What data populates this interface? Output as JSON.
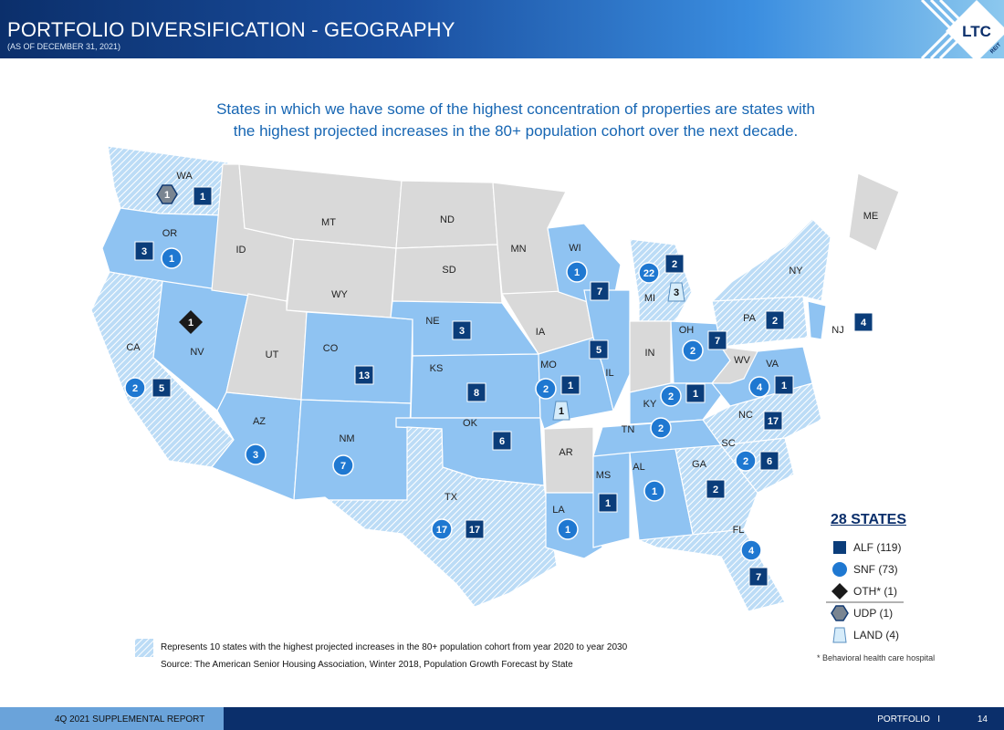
{
  "header": {
    "title": "PORTFOLIO DIVERSIFICATION - GEOGRAPHY",
    "subtitle": "(AS OF DECEMBER 31, 2021)",
    "logo_text": "LTC",
    "logo_subtext": "REIT"
  },
  "headline": "States in which we have some of the highest concentration of properties are states with the highest projected increases in the 80+ population cohort over the next decade.",
  "colors": {
    "alf": "#0b3d7a",
    "snf": "#1f78d1",
    "oth": "#1a1a1a",
    "udp": "#7a8591",
    "land": "#d6ecfa",
    "presence_state": "#8fc3f2",
    "other_state": "#d9d9d9"
  },
  "states": [
    {
      "abbr": "WA",
      "counts": [
        {
          "type": "UDP",
          "value": "1"
        },
        {
          "type": "ALF",
          "value": "1"
        }
      ],
      "hatched": true
    },
    {
      "abbr": "OR",
      "counts": [
        {
          "type": "ALF",
          "value": "3"
        },
        {
          "type": "SNF",
          "value": "1"
        }
      ],
      "hatched": false
    },
    {
      "abbr": "CA",
      "counts": [
        {
          "type": "SNF",
          "value": "2"
        },
        {
          "type": "ALF",
          "value": "5"
        }
      ],
      "hatched": true
    },
    {
      "abbr": "NV",
      "counts": [
        {
          "type": "OTH",
          "value": "1"
        }
      ],
      "hatched": false
    },
    {
      "abbr": "ID",
      "counts": [],
      "hatched": false
    },
    {
      "abbr": "MT",
      "counts": [],
      "hatched": false
    },
    {
      "abbr": "WY",
      "counts": [],
      "hatched": false
    },
    {
      "abbr": "UT",
      "counts": [],
      "hatched": false
    },
    {
      "abbr": "AZ",
      "counts": [
        {
          "type": "SNF",
          "value": "3"
        }
      ],
      "hatched": false
    },
    {
      "abbr": "CO",
      "counts": [
        {
          "type": "ALF",
          "value": "13"
        }
      ],
      "hatched": false
    },
    {
      "abbr": "NM",
      "counts": [
        {
          "type": "SNF",
          "value": "7"
        }
      ],
      "hatched": false
    },
    {
      "abbr": "ND",
      "counts": [],
      "hatched": false
    },
    {
      "abbr": "SD",
      "counts": [],
      "hatched": false
    },
    {
      "abbr": "NE",
      "counts": [
        {
          "type": "ALF",
          "value": "3"
        }
      ],
      "hatched": false
    },
    {
      "abbr": "KS",
      "counts": [
        {
          "type": "ALF",
          "value": "8"
        }
      ],
      "hatched": false
    },
    {
      "abbr": "OK",
      "counts": [
        {
          "type": "ALF",
          "value": "6"
        }
      ],
      "hatched": false
    },
    {
      "abbr": "TX",
      "counts": [
        {
          "type": "SNF",
          "value": "17"
        },
        {
          "type": "ALF",
          "value": "17"
        }
      ],
      "hatched": true
    },
    {
      "abbr": "MN",
      "counts": [],
      "hatched": false
    },
    {
      "abbr": "IA",
      "counts": [],
      "hatched": false
    },
    {
      "abbr": "MO",
      "counts": [
        {
          "type": "SNF",
          "value": "2"
        },
        {
          "type": "ALF",
          "value": "1"
        },
        {
          "type": "LAND",
          "value": "1"
        }
      ],
      "hatched": false
    },
    {
      "abbr": "AR",
      "counts": [],
      "hatched": false
    },
    {
      "abbr": "LA",
      "counts": [
        {
          "type": "SNF",
          "value": "1"
        }
      ],
      "hatched": false
    },
    {
      "abbr": "WI",
      "counts": [
        {
          "type": "SNF",
          "value": "1"
        },
        {
          "type": "ALF",
          "value": "7"
        }
      ],
      "hatched": false
    },
    {
      "abbr": "IL",
      "counts": [
        {
          "type": "ALF",
          "value": "5"
        }
      ],
      "hatched": false
    },
    {
      "abbr": "MI",
      "counts": [
        {
          "type": "SNF",
          "value": "22"
        },
        {
          "type": "ALF",
          "value": "2"
        },
        {
          "type": "LAND",
          "value": "3"
        }
      ],
      "hatched": true
    },
    {
      "abbr": "IN",
      "counts": [],
      "hatched": false
    },
    {
      "abbr": "OH",
      "counts": [
        {
          "type": "SNF",
          "value": "2"
        },
        {
          "type": "ALF",
          "value": "7"
        }
      ],
      "hatched": false
    },
    {
      "abbr": "KY",
      "counts": [
        {
          "type": "SNF",
          "value": "2"
        },
        {
          "type": "ALF",
          "value": "1"
        }
      ],
      "hatched": false
    },
    {
      "abbr": "TN",
      "counts": [
        {
          "type": "SNF",
          "value": "2"
        }
      ],
      "hatched": false
    },
    {
      "abbr": "MS",
      "counts": [
        {
          "type": "ALF",
          "value": "1"
        }
      ],
      "hatched": false
    },
    {
      "abbr": "AL",
      "counts": [
        {
          "type": "SNF",
          "value": "1"
        }
      ],
      "hatched": false
    },
    {
      "abbr": "GA",
      "counts": [
        {
          "type": "ALF",
          "value": "2"
        }
      ],
      "hatched": true
    },
    {
      "abbr": "FL",
      "counts": [
        {
          "type": "SNF",
          "value": "4"
        },
        {
          "type": "ALF",
          "value": "7"
        }
      ],
      "hatched": true
    },
    {
      "abbr": "SC",
      "counts": [
        {
          "type": "SNF",
          "value": "2"
        },
        {
          "type": "ALF",
          "value": "6"
        }
      ],
      "hatched": true
    },
    {
      "abbr": "NC",
      "counts": [
        {
          "type": "ALF",
          "value": "17"
        }
      ],
      "hatched": true
    },
    {
      "abbr": "VA",
      "counts": [
        {
          "type": "SNF",
          "value": "4"
        },
        {
          "type": "ALF",
          "value": "1"
        }
      ],
      "hatched": false
    },
    {
      "abbr": "WV",
      "counts": [],
      "hatched": false
    },
    {
      "abbr": "PA",
      "counts": [
        {
          "type": "ALF",
          "value": "2"
        }
      ],
      "hatched": true
    },
    {
      "abbr": "NY",
      "counts": [],
      "hatched": true
    },
    {
      "abbr": "NJ",
      "counts": [
        {
          "type": "ALF",
          "value": "4"
        }
      ],
      "hatched": false
    },
    {
      "abbr": "ME",
      "counts": [],
      "hatched": false
    }
  ],
  "legend": {
    "title": "28 STATES",
    "items": [
      {
        "type": "ALF",
        "label": "ALF (119)"
      },
      {
        "type": "SNF",
        "label": "SNF (73)"
      },
      {
        "type": "OTH",
        "label": "OTH* (1)"
      },
      {
        "type": "UDP",
        "label": "UDP (1)"
      },
      {
        "type": "LAND",
        "label": "LAND (4)"
      }
    ],
    "footnote": "* Behavioral health care hospital"
  },
  "notes": {
    "hatch": "Represents 10 states with the highest projected increases in the 80+ population cohort from year 2020 to year 2030",
    "source": "Source:  The American Senior Housing Association, Winter 2018, Population Growth Forecast by State"
  },
  "footer": {
    "left": "4Q 2021 SUPPLEMENTAL REPORT",
    "right": "PORTFOLIO",
    "separator": "I",
    "page": "14"
  }
}
